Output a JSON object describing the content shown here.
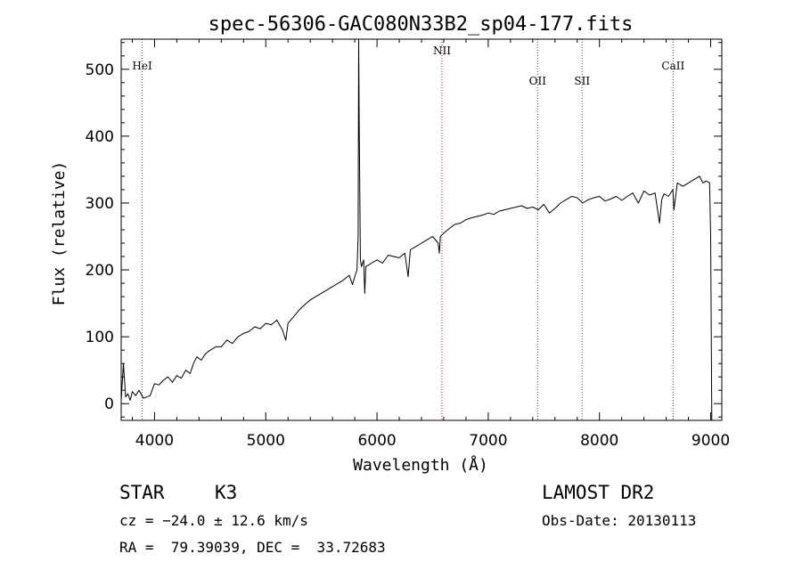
{
  "chart_data": {
    "type": "line",
    "title": "spec-56306-GAC080N33B2_sp04-177.fits",
    "xlabel": "Wavelength (Å)",
    "ylabel": "Flux (relative)",
    "xlim": [
      3700,
      9100
    ],
    "ylim": [
      -25,
      545
    ],
    "xticks": [
      4000,
      5000,
      6000,
      7000,
      8000,
      9000
    ],
    "yticks": [
      0,
      100,
      200,
      300,
      400,
      500
    ],
    "grid": false,
    "series": [
      {
        "x": [
          3700,
          3720,
          3740,
          3760,
          3780,
          3800,
          3830,
          3860,
          3900,
          3930,
          3960,
          4000,
          4040,
          4080,
          4120,
          4160,
          4200,
          4240,
          4280,
          4320,
          4350,
          4380,
          4420,
          4460,
          4500,
          4550,
          4600,
          4650,
          4700,
          4750,
          4800,
          4850,
          4900,
          4950,
          5000,
          5050,
          5100,
          5150,
          5180,
          5200,
          5250,
          5300,
          5350,
          5400,
          5450,
          5500,
          5550,
          5600,
          5650,
          5700,
          5750,
          5780,
          5800,
          5820,
          5830,
          5835,
          5840,
          5845,
          5850,
          5860,
          5880,
          5890,
          5900,
          5950,
          6000,
          6050,
          6100,
          6150,
          6200,
          6250,
          6280,
          6300,
          6350,
          6400,
          6450,
          6500,
          6550,
          6560,
          6570,
          6600,
          6650,
          6700,
          6750,
          6800,
          6850,
          6900,
          6950,
          7000,
          7050,
          7100,
          7150,
          7200,
          7250,
          7300,
          7350,
          7400,
          7450,
          7500,
          7550,
          7600,
          7650,
          7700,
          7750,
          7800,
          7850,
          7900,
          7950,
          8000,
          8050,
          8100,
          8150,
          8200,
          8250,
          8300,
          8350,
          8400,
          8450,
          8500,
          8540,
          8560,
          8580,
          8620,
          8660,
          8670,
          8700,
          8750,
          8800,
          8850,
          8900,
          8930,
          8960,
          8990,
          9000,
          9010
        ],
        "y": [
          5,
          60,
          10,
          15,
          5,
          18,
          12,
          20,
          8,
          10,
          12,
          30,
          28,
          35,
          40,
          32,
          42,
          38,
          50,
          45,
          60,
          70,
          65,
          75,
          80,
          85,
          85,
          95,
          90,
          100,
          105,
          108,
          115,
          112,
          120,
          118,
          125,
          110,
          95,
          120,
          130,
          140,
          148,
          155,
          160,
          165,
          170,
          175,
          180,
          185,
          192,
          178,
          190,
          200,
          250,
          545,
          420,
          330,
          215,
          205,
          215,
          165,
          205,
          210,
          215,
          210,
          222,
          220,
          218,
          225,
          190,
          230,
          235,
          240,
          245,
          250,
          240,
          225,
          250,
          255,
          262,
          268,
          270,
          275,
          278,
          280,
          282,
          285,
          283,
          288,
          290,
          292,
          294,
          296,
          292,
          294,
          290,
          298,
          285,
          292,
          300,
          305,
          310,
          308,
          300,
          305,
          308,
          310,
          303,
          306,
          310,
          304,
          310,
          315,
          300,
          318,
          312,
          315,
          270,
          305,
          314,
          310,
          320,
          290,
          330,
          325,
          330,
          335,
          340,
          330,
          333,
          330,
          250,
          -25
        ]
      }
    ],
    "annotations": [
      {
        "text": "HeI",
        "x": 3889
      },
      {
        "text": "NII",
        "x": 6584
      },
      {
        "text": "OII",
        "x": 7444
      },
      {
        "text": "SII",
        "x": 7844
      },
      {
        "text": "CaII",
        "x": 8662
      }
    ]
  },
  "info": {
    "object_class": "STAR",
    "subclass": "K3",
    "survey": "LAMOST DR2",
    "cz": "cz = −24.0 ± 12.6 km/s",
    "obs_date": "Obs-Date: 20130113",
    "radec": "RA =  79.39039, DEC =  33.72683"
  }
}
